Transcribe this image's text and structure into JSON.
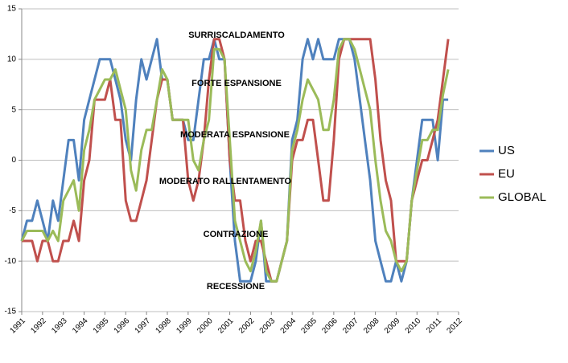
{
  "chart_data": {
    "type": "line",
    "annotations": [
      "SURRISCALDAMENTO",
      "FORTE ESPANSIONE",
      "MODERATA ESPANSIONE",
      "MODERATO RALLENTAMENTO",
      "CONTRAZIONE",
      "RECESSIONE"
    ],
    "x": [
      1991,
      1991.25,
      1991.5,
      1991.75,
      1992,
      1992.25,
      1992.5,
      1992.75,
      1993,
      1993.25,
      1993.5,
      1993.75,
      1994,
      1994.25,
      1994.5,
      1994.75,
      1995,
      1995.25,
      1995.5,
      1995.75,
      1996,
      1996.25,
      1996.5,
      1996.75,
      1997,
      1997.25,
      1997.5,
      1997.75,
      1998,
      1998.25,
      1998.5,
      1998.75,
      1999,
      1999.25,
      1999.5,
      1999.75,
      2000,
      2000.25,
      2000.5,
      2000.75,
      2001,
      2001.25,
      2001.5,
      2001.75,
      2002,
      2002.25,
      2002.5,
      2002.75,
      2003,
      2003.25,
      2003.5,
      2003.75,
      2004,
      2004.25,
      2004.5,
      2004.75,
      2005,
      2005.25,
      2005.5,
      2005.75,
      2006,
      2006.25,
      2006.5,
      2006.75,
      2007,
      2007.25,
      2007.5,
      2007.75,
      2008,
      2008.25,
      2008.5,
      2008.75,
      2009,
      2009.25,
      2009.5,
      2009.75,
      2010,
      2010.25,
      2010.5,
      2010.75,
      2011,
      2011.25,
      2011.5
    ],
    "series": [
      {
        "name": "US",
        "color": "#4f81bd",
        "values": [
          -8,
          -6,
          -6,
          -4,
          -6,
          -8,
          -4,
          -6,
          -2,
          2,
          2,
          -2,
          4,
          6,
          8,
          10,
          10,
          10,
          8,
          6,
          2,
          0,
          6,
          10,
          8,
          10,
          12,
          8,
          8,
          4,
          4,
          4,
          2,
          2,
          6,
          10,
          10,
          12,
          10,
          10,
          0,
          -8,
          -12,
          -12,
          -12,
          -10,
          -6,
          -12,
          -12,
          -12,
          -10,
          -8,
          2,
          4,
          10,
          12,
          10,
          12,
          10,
          10,
          10,
          12,
          12,
          12,
          10,
          6,
          2,
          -2,
          -8,
          -10,
          -12,
          -12,
          -10,
          -12,
          -10,
          -4,
          0,
          4,
          4,
          4,
          0,
          6,
          6
        ]
      },
      {
        "name": "EU",
        "color": "#c0504d",
        "values": [
          -8,
          -8,
          -8,
          -10,
          -8,
          -8,
          -10,
          -10,
          -8,
          -8,
          -6,
          -8,
          -2,
          0,
          6,
          6,
          6,
          8,
          4,
          4,
          -4,
          -6,
          -6,
          -4,
          -2,
          2,
          6,
          8,
          8,
          4,
          4,
          4,
          -2,
          -4,
          -2,
          2,
          8,
          12,
          12,
          10,
          0,
          -4,
          -4,
          -8,
          -10,
          -8,
          -8,
          -10,
          -12,
          -12,
          -10,
          -8,
          0,
          2,
          2,
          4,
          4,
          0,
          -4,
          -4,
          2,
          10,
          12,
          12,
          12,
          12,
          12,
          12,
          8,
          2,
          -2,
          -4,
          -10,
          -10,
          -10,
          -4,
          -2,
          0,
          0,
          2,
          4,
          8,
          12
        ]
      },
      {
        "name": "GLOBAL",
        "color": "#9bbb59",
        "values": [
          -8,
          -7,
          -7,
          -7,
          -7,
          -8,
          -7,
          -8,
          -4,
          -3,
          -2,
          -5,
          1,
          3,
          6,
          7,
          8,
          8,
          9,
          7,
          5,
          -1,
          -3,
          1,
          3,
          3,
          6,
          9,
          8,
          4,
          4,
          4,
          4,
          0,
          -1,
          2,
          4,
          11,
          11,
          10,
          2,
          -6,
          -8,
          -10,
          -11,
          -9,
          -6,
          -11,
          -12,
          -12,
          -10,
          -8,
          1,
          3,
          6,
          8,
          7,
          6,
          3,
          3,
          6,
          11,
          12,
          12,
          11,
          9,
          7,
          5,
          0,
          -4,
          -7,
          -8,
          -10,
          -11,
          -10,
          -4,
          -1,
          2,
          2,
          3,
          3,
          6.5,
          9
        ]
      }
    ],
    "xlim": [
      1991,
      2012
    ],
    "xticks": [
      1991,
      1992,
      1993,
      1994,
      1995,
      1996,
      1997,
      1998,
      1999,
      2000,
      2001,
      2002,
      2003,
      2004,
      2005,
      2006,
      2007,
      2008,
      2009,
      2010,
      2011,
      2012
    ],
    "ylim": [
      -15,
      15
    ],
    "yticks": [
      -15,
      -10,
      -5,
      0,
      5,
      10,
      15
    ],
    "grid": true
  }
}
